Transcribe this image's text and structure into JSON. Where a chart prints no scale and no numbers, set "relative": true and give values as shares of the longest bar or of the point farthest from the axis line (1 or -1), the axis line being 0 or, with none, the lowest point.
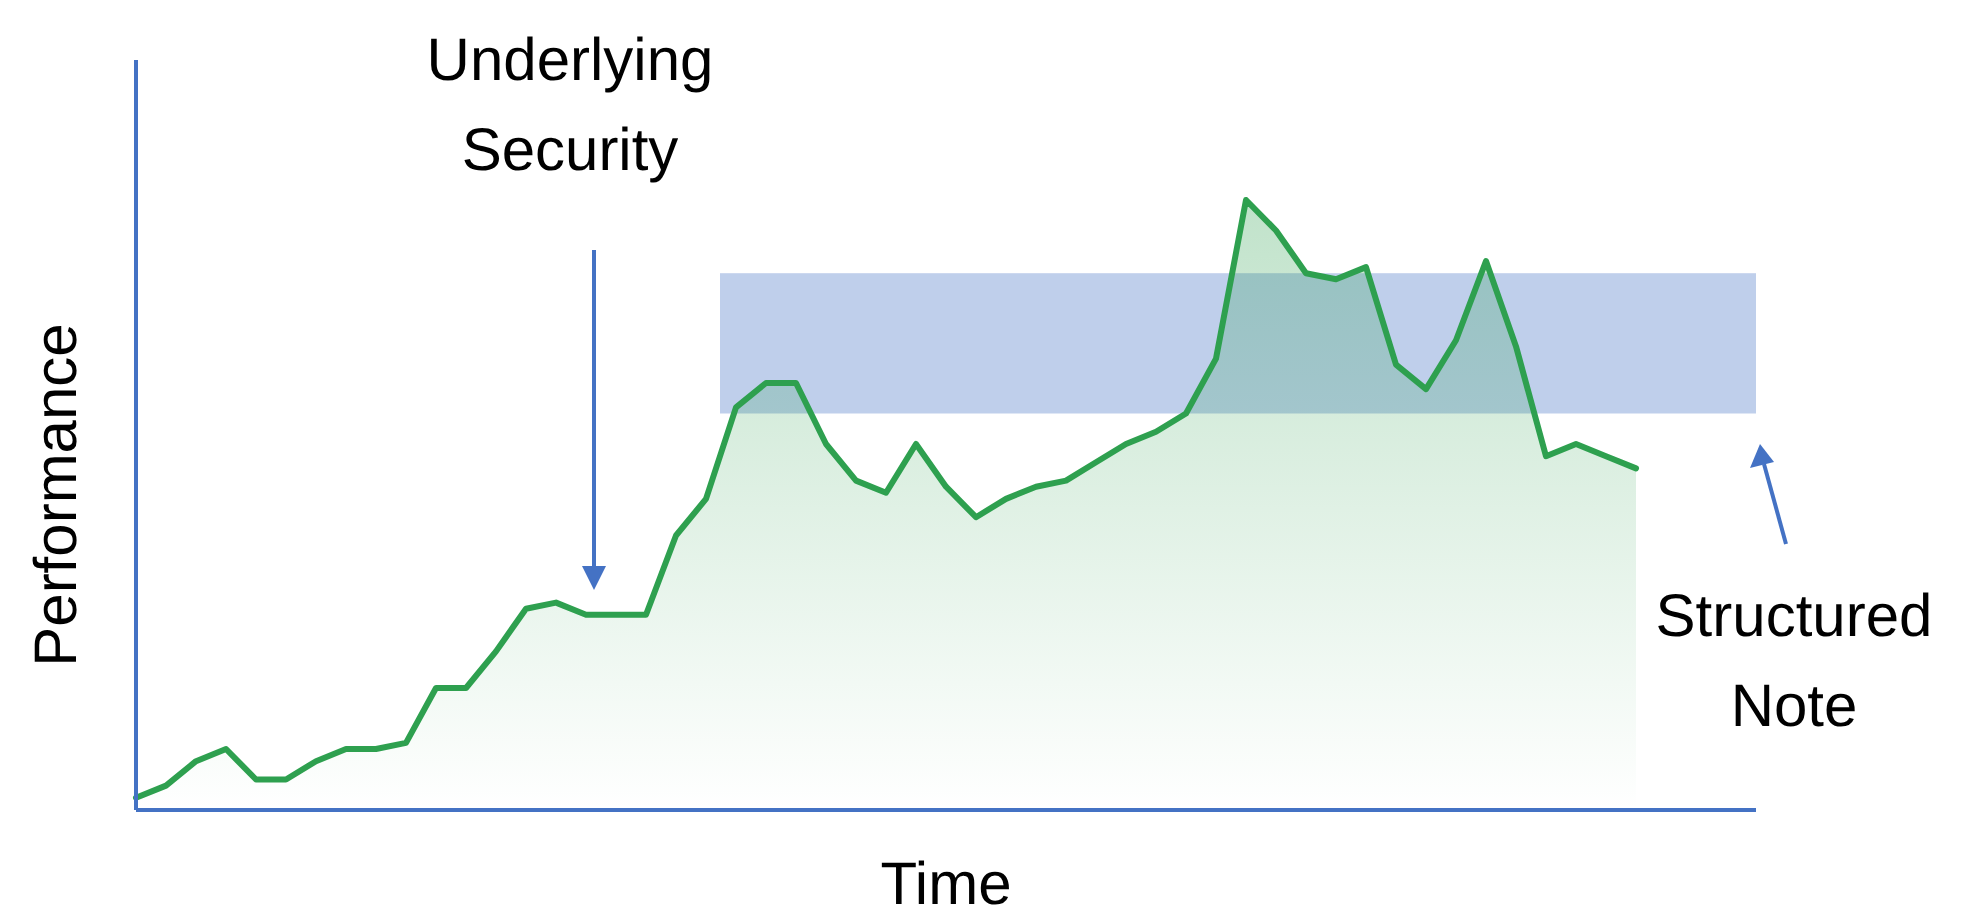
{
  "chart_data": {
    "type": "area",
    "relative": true,
    "xlabel": "Time",
    "ylabel": "Performance",
    "categories": [
      null,
      null,
      null,
      null,
      null,
      null,
      null,
      null,
      null,
      null,
      null,
      null,
      null,
      null,
      null,
      null,
      null,
      null,
      null,
      null,
      null,
      null,
      null,
      null,
      null,
      null,
      null,
      null,
      null,
      null,
      null,
      null,
      null,
      null,
      null,
      null,
      null,
      null,
      null,
      null,
      null,
      null,
      null,
      null,
      null,
      null,
      null,
      null,
      null,
      null,
      null
    ],
    "series": [
      {
        "color": "#2ea04f",
        "values": [
          0.02,
          0.04,
          0.08,
          0.1,
          0.05,
          0.05,
          0.08,
          0.1,
          0.1,
          0.11,
          0.2,
          0.2,
          0.26,
          0.33,
          0.34,
          0.32,
          0.32,
          0.32,
          0.45,
          0.51,
          0.66,
          0.7,
          0.7,
          0.6,
          0.54,
          0.52,
          0.6,
          0.53,
          0.48,
          0.51,
          0.53,
          0.54,
          0.57,
          0.6,
          0.62,
          0.65,
          0.74,
          1,
          0.95,
          0.88,
          0.87,
          0.89,
          0.73,
          0.69,
          0.77,
          0.9,
          0.76,
          0.58,
          0.6,
          0.58,
          0.56
        ]
      }
    ],
    "bands": [
      {
        "axis": "y",
        "from": 0.65,
        "to": 0.88,
        "color": "#b4c7e7"
      }
    ],
    "annotations": [
      "Underlying Security",
      "Structured Note"
    ],
    "marker": "none",
    "line_style": "solid",
    "legend": false
  }
}
